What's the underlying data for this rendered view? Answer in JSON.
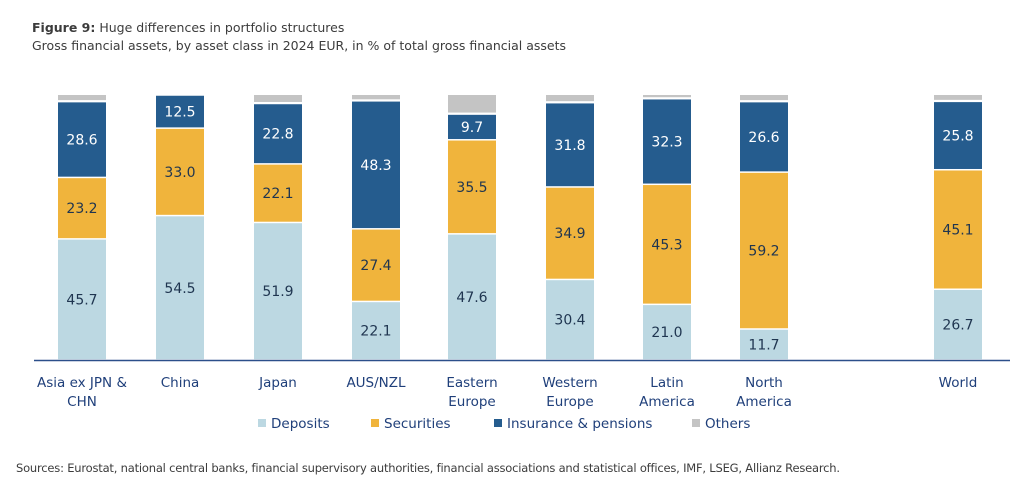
{
  "figure_label": "Figure 9:",
  "title": "Huge differences in portfolio structures",
  "subtitle": "Gross financial assets, by asset class in 2024 EUR, in % of total gross financial assets",
  "source": "Sources: Eurostat, national central banks, financial supervisory authorities, financial associations and statistical offices, IMF, LSEG, Allianz Research.",
  "chart_data": {
    "type": "bar",
    "stacked": true,
    "title": "Huge differences in portfolio structures",
    "subtitle": "Gross financial assets, by asset class in 2024 EUR, in % of total gross financial assets",
    "xlabel": "",
    "ylabel": "% of total gross financial assets",
    "ylim": [
      0,
      100
    ],
    "grid": false,
    "legend_position": "bottom",
    "categories": [
      [
        "Asia ex JPN &",
        "CHN"
      ],
      [
        "China"
      ],
      [
        "Japan"
      ],
      [
        "AUS/NZL"
      ],
      [
        "Eastern",
        "Europe"
      ],
      [
        "Western",
        "Europe"
      ],
      [
        "Latin",
        "America"
      ],
      [
        "North",
        "America"
      ],
      [
        "World"
      ]
    ],
    "series": [
      {
        "name": "Deposits",
        "color": "#bcd8e2",
        "label_color": "#1f3550",
        "values": [
          45.7,
          54.5,
          51.9,
          22.1,
          47.6,
          30.4,
          21.0,
          11.7,
          26.7
        ],
        "show_labels": true
      },
      {
        "name": "Securities",
        "color": "#f0b43c",
        "label_color": "#1f3550",
        "values": [
          23.2,
          33.0,
          22.1,
          27.4,
          35.5,
          34.9,
          45.3,
          59.2,
          45.1
        ],
        "show_labels": true
      },
      {
        "name": "Insurance & pensions",
        "color": "#255c8e",
        "label_color": "#ffffff",
        "values": [
          28.6,
          12.5,
          22.8,
          48.3,
          9.7,
          31.8,
          32.3,
          26.6,
          25.8
        ],
        "show_labels": true
      },
      {
        "name": "Others",
        "color": "#c4c4c4",
        "label_color": "#1f3550",
        "values": [
          2.5,
          0.0,
          3.2,
          2.2,
          7.2,
          2.9,
          1.4,
          2.5,
          2.4
        ],
        "show_labels": false
      }
    ],
    "axis_color": "#2c4f8a"
  }
}
